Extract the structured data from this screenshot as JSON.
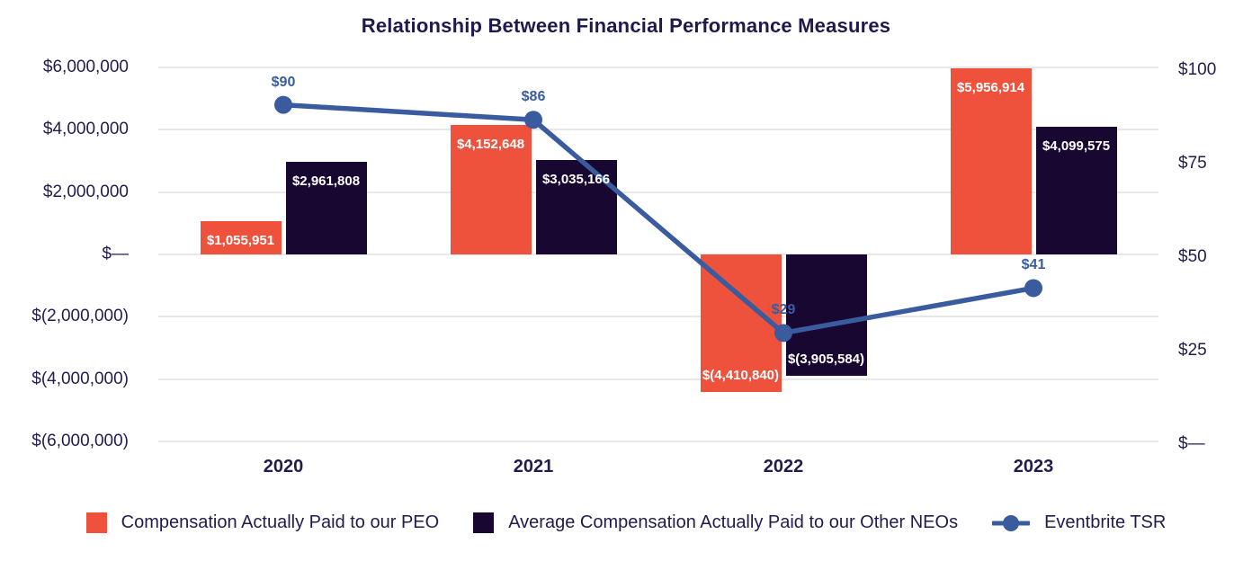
{
  "title": "Relationship Between Financial Performance Measures",
  "colors": {
    "peo_bar": "#ee523c",
    "neo_bar": "#170731",
    "tsr_line": "#3a5c9f",
    "gridline": "#e8e8e8",
    "axis_text": "#221b4e",
    "title_text": "#1f1a4e",
    "bar_label_text": "#ffffff"
  },
  "chart_data": {
    "type": "bar",
    "subtype": "grouped-bar-with-line-overlay-dual-axis",
    "title": "Relationship Between Financial Performance Measures",
    "categories": [
      "2020",
      "2021",
      "2022",
      "2023"
    ],
    "series": [
      {
        "name": "Compensation Actually Paid to our PEO",
        "type": "bar",
        "axis": "left",
        "color": "#ee523c",
        "values": [
          1055951,
          4152648,
          -4410840,
          5956914
        ],
        "labels": [
          "$1,055,951",
          "$4,152,648",
          "$(4,410,840)",
          "$5,956,914"
        ]
      },
      {
        "name": "Average Compensation Actually Paid to our Other NEOs",
        "type": "bar",
        "axis": "left",
        "color": "#170731",
        "values": [
          2961808,
          3035166,
          -3905584,
          4099575
        ],
        "labels": [
          "$2,961,808",
          "$3,035,166",
          "$(3,905,584)",
          "$4,099,575"
        ]
      },
      {
        "name": "Eventbrite TSR",
        "type": "line",
        "axis": "right",
        "color": "#3a5c9f",
        "values": [
          90,
          86,
          29,
          41
        ],
        "labels": [
          "$90",
          "$86",
          "$29",
          "$41"
        ]
      }
    ],
    "left_axis": {
      "min": -6000000,
      "max": 6000000,
      "tick_values": [
        6000000,
        4000000,
        2000000,
        0,
        -2000000,
        -4000000,
        -6000000
      ],
      "tick_labels": [
        "$6,000,000",
        "$4,000,000",
        "$2,000,000",
        "$—",
        "$(2,000,000)",
        "$(4,000,000)",
        "$(6,000,000)"
      ]
    },
    "right_axis": {
      "min": 0,
      "max": 100,
      "tick_values": [
        100,
        75,
        50,
        25,
        0
      ],
      "tick_labels": [
        "$100",
        "$75",
        "$50",
        "$25",
        "$—"
      ]
    },
    "grid": "horizontal gridlines only",
    "legend_position": "bottom"
  },
  "legend": {
    "items": [
      {
        "label": "Compensation Actually Paid to our PEO",
        "marker": "square",
        "color": "#ee523c"
      },
      {
        "label": "Average Compensation Actually Paid to our Other NEOs",
        "marker": "square",
        "color": "#170731"
      },
      {
        "label": "Eventbrite TSR",
        "marker": "line-dot",
        "color": "#3a5c9f"
      }
    ]
  }
}
